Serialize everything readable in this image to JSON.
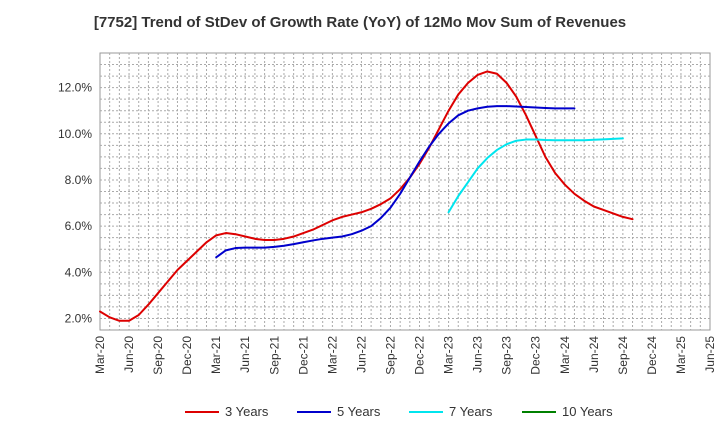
{
  "chart_data": {
    "type": "line",
    "title": "[7752]  Trend of StDev of Growth Rate (YoY) of 12Mo Mov Sum of Revenues",
    "xlabel": "",
    "ylabel": "",
    "ylim": [
      1.5,
      13.5
    ],
    "yticks": [
      2,
      4,
      6,
      8,
      10,
      12
    ],
    "ytick_labels": [
      "2.0%",
      "4.0%",
      "6.0%",
      "8.0%",
      "10.0%",
      "12.0%"
    ],
    "x_range": [
      "Mar-20",
      "Jun-25"
    ],
    "xtick_labels": [
      "Mar-20",
      "Jun-20",
      "Sep-20",
      "Dec-20",
      "Mar-21",
      "Jun-21",
      "Sep-21",
      "Dec-21",
      "Mar-22",
      "Jun-22",
      "Sep-22",
      "Dec-22",
      "Mar-23",
      "Jun-23",
      "Sep-23",
      "Dec-23",
      "Mar-24",
      "Jun-24",
      "Sep-24",
      "Dec-24",
      "Mar-25",
      "Jun-25"
    ],
    "grid": true,
    "legend_position": "bottom",
    "series": [
      {
        "name": "3 Years",
        "color": "#dd0000",
        "start": "Mar-20",
        "values": [
          2.3,
          2.05,
          1.9,
          1.9,
          2.15,
          2.6,
          3.1,
          3.6,
          4.1,
          4.5,
          4.9,
          5.3,
          5.6,
          5.7,
          5.65,
          5.55,
          5.45,
          5.4,
          5.4,
          5.45,
          5.55,
          5.7,
          5.85,
          6.05,
          6.25,
          6.4,
          6.5,
          6.6,
          6.75,
          6.95,
          7.2,
          7.6,
          8.1,
          8.7,
          9.4,
          10.2,
          11.0,
          11.7,
          12.2,
          12.55,
          12.7,
          12.6,
          12.2,
          11.6,
          10.8,
          9.9,
          9.0,
          8.3,
          7.8,
          7.4,
          7.1,
          6.85,
          6.7,
          6.55,
          6.4,
          6.3
        ]
      },
      {
        "name": "5 Years",
        "color": "#0000cc",
        "start": "Mar-21",
        "values": [
          4.65,
          4.95,
          5.05,
          5.07,
          5.07,
          5.07,
          5.1,
          5.15,
          5.22,
          5.3,
          5.38,
          5.45,
          5.5,
          5.55,
          5.65,
          5.8,
          6.0,
          6.35,
          6.8,
          7.4,
          8.1,
          8.8,
          9.45,
          10.0,
          10.45,
          10.8,
          11.0,
          11.1,
          11.17,
          11.2,
          11.2,
          11.18,
          11.16,
          11.14,
          11.12,
          11.1,
          11.1,
          11.1
        ]
      },
      {
        "name": "7 Years",
        "color": "#00e5ee",
        "start": "Mar-23",
        "values": [
          6.6,
          7.3,
          7.9,
          8.5,
          8.95,
          9.3,
          9.55,
          9.7,
          9.75,
          9.75,
          9.73,
          9.72,
          9.72,
          9.72,
          9.72,
          9.74,
          9.76,
          9.78,
          9.8
        ]
      },
      {
        "name": "10 Years",
        "color": "#008000",
        "start": "Mar-25",
        "values": []
      }
    ]
  }
}
